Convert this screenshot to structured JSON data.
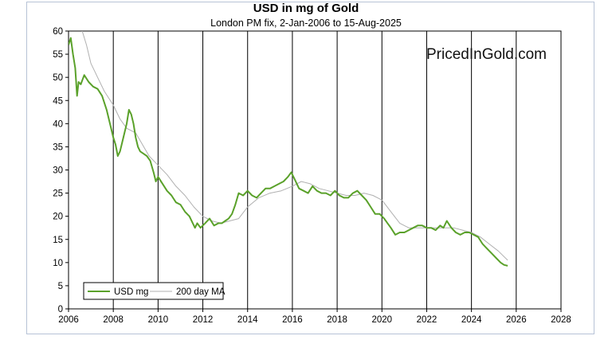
{
  "chart_data": {
    "type": "line",
    "title": "USD in mg of Gold",
    "subtitle": "London PM fix, 2-Jan-2006 to 15-Aug-2025",
    "watermark": "PricedInGold.com",
    "xlim": [
      2006,
      2028
    ],
    "ylim": [
      0,
      60
    ],
    "x_ticks": [
      2006,
      2008,
      2010,
      2012,
      2014,
      2016,
      2018,
      2020,
      2022,
      2024,
      2026,
      2028
    ],
    "y_ticks": [
      0,
      5,
      10,
      15,
      20,
      25,
      30,
      35,
      40,
      45,
      50,
      55,
      60
    ],
    "grid": "vertical",
    "legend_position": "bottom-left",
    "series": [
      {
        "name": "USD mg",
        "color": "#5aa12a",
        "x": [
          2006.0,
          2006.1,
          2006.2,
          2006.3,
          2006.38,
          2006.45,
          2006.55,
          2006.7,
          2006.9,
          2007.1,
          2007.3,
          2007.5,
          2007.7,
          2007.85,
          2008.0,
          2008.1,
          2008.2,
          2008.3,
          2008.4,
          2008.5,
          2008.6,
          2008.7,
          2008.8,
          2008.9,
          2009.0,
          2009.1,
          2009.2,
          2009.35,
          2009.5,
          2009.65,
          2009.8,
          2009.9,
          2010.0,
          2010.2,
          2010.4,
          2010.6,
          2010.8,
          2011.0,
          2011.2,
          2011.4,
          2011.55,
          2011.65,
          2011.75,
          2011.9,
          2012.1,
          2012.3,
          2012.5,
          2012.7,
          2012.85,
          2013.0,
          2013.15,
          2013.3,
          2013.45,
          2013.6,
          2013.8,
          2014.0,
          2014.2,
          2014.4,
          2014.6,
          2014.8,
          2015.0,
          2015.2,
          2015.4,
          2015.6,
          2015.8,
          2015.95,
          2016.1,
          2016.3,
          2016.5,
          2016.7,
          2016.9,
          2017.1,
          2017.3,
          2017.5,
          2017.7,
          2017.9,
          2018.1,
          2018.3,
          2018.5,
          2018.7,
          2018.9,
          2019.1,
          2019.3,
          2019.5,
          2019.7,
          2019.9,
          2020.1,
          2020.25,
          2020.4,
          2020.6,
          2020.8,
          2021.0,
          2021.2,
          2021.4,
          2021.6,
          2021.8,
          2022.0,
          2022.2,
          2022.4,
          2022.6,
          2022.75,
          2022.9,
          2023.1,
          2023.3,
          2023.5,
          2023.7,
          2023.9,
          2024.1,
          2024.3,
          2024.5,
          2024.7,
          2024.9,
          2025.1,
          2025.3,
          2025.45,
          2025.62
        ],
        "y": [
          57.0,
          58.5,
          55.0,
          52.0,
          46.0,
          49.0,
          48.5,
          50.5,
          49.0,
          48.0,
          47.5,
          46.0,
          43.0,
          40.0,
          37.0,
          35.5,
          33.0,
          34.0,
          36.0,
          38.0,
          40.0,
          43.0,
          42.0,
          40.0,
          37.0,
          35.0,
          34.0,
          33.5,
          33.0,
          32.0,
          29.5,
          27.5,
          28.5,
          27.0,
          25.5,
          24.5,
          23.0,
          22.5,
          21.0,
          20.0,
          18.5,
          17.5,
          18.5,
          17.5,
          18.5,
          19.5,
          18.0,
          18.5,
          18.5,
          19.0,
          19.5,
          20.5,
          22.5,
          25.0,
          24.5,
          25.5,
          24.5,
          24.0,
          25.0,
          26.0,
          26.0,
          26.5,
          27.0,
          27.5,
          28.5,
          29.5,
          28.0,
          26.0,
          25.5,
          25.0,
          26.5,
          25.5,
          25.0,
          25.0,
          24.5,
          25.5,
          24.5,
          24.0,
          24.0,
          25.0,
          25.5,
          24.5,
          23.5,
          22.0,
          20.5,
          20.5,
          19.5,
          18.5,
          17.5,
          16.0,
          16.5,
          16.5,
          17.0,
          17.5,
          18.0,
          18.0,
          17.5,
          17.5,
          17.0,
          18.0,
          17.5,
          19.0,
          17.5,
          16.5,
          16.0,
          16.5,
          16.5,
          16.0,
          15.5,
          14.0,
          13.0,
          12.0,
          11.0,
          10.0,
          9.5,
          9.3
        ]
      },
      {
        "name": "200 day MA",
        "color": "#b0b0b0",
        "x": [
          2006.55,
          2006.8,
          2007.0,
          2007.3,
          2007.6,
          2008.0,
          2008.3,
          2008.6,
          2009.0,
          2009.3,
          2009.6,
          2010.0,
          2010.4,
          2010.8,
          2011.2,
          2011.6,
          2012.0,
          2012.4,
          2012.8,
          2013.2,
          2013.6,
          2014.0,
          2014.5,
          2015.0,
          2015.5,
          2016.0,
          2016.4,
          2016.8,
          2017.2,
          2017.6,
          2018.0,
          2018.4,
          2018.8,
          2019.2,
          2019.6,
          2020.0,
          2020.4,
          2020.8,
          2021.2,
          2021.6,
          2022.0,
          2022.4,
          2022.8,
          2023.2,
          2023.6,
          2024.0,
          2024.4,
          2024.8,
          2025.2,
          2025.62
        ],
        "y": [
          61.0,
          57.0,
          53.0,
          50.0,
          47.0,
          44.0,
          41.0,
          39.0,
          38.0,
          35.5,
          33.0,
          31.0,
          29.0,
          26.5,
          24.5,
          22.0,
          20.0,
          19.0,
          18.5,
          19.0,
          19.5,
          22.0,
          24.0,
          25.0,
          25.5,
          26.5,
          27.5,
          27.0,
          26.0,
          25.5,
          25.0,
          24.5,
          24.5,
          25.0,
          24.5,
          23.5,
          21.0,
          18.5,
          17.5,
          17.5,
          17.5,
          17.5,
          17.5,
          17.5,
          17.0,
          16.5,
          15.5,
          14.0,
          12.5,
          10.5
        ]
      }
    ]
  }
}
